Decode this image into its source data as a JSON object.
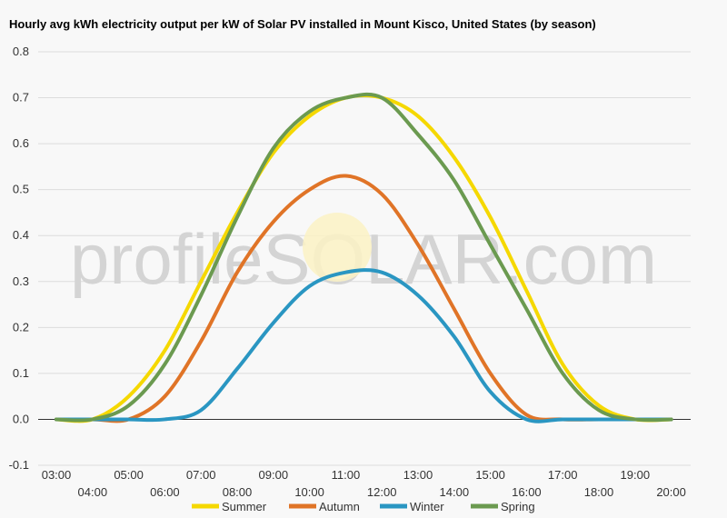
{
  "chart_data": {
    "type": "line",
    "title": "Hourly avg kWh electricity output per kW of Solar PV installed in Mount Kisco, United States (by season)",
    "watermark": "profileSOLAR.com",
    "ylim": [
      -0.1,
      0.8
    ],
    "yticks": [
      "-0.1",
      "0.0",
      "0.1",
      "0.2",
      "0.3",
      "0.4",
      "0.5",
      "0.6",
      "0.7",
      "0.8"
    ],
    "x_labels": [
      "03:00",
      "04:00",
      "05:00",
      "06:00",
      "07:00",
      "08:00",
      "09:00",
      "10:00",
      "11:00",
      "12:00",
      "13:00",
      "14:00",
      "15:00",
      "16:00",
      "17:00",
      "18:00",
      "19:00",
      "20:00"
    ],
    "grid": true,
    "legend_position": "bottom",
    "series": [
      {
        "name": "Summer",
        "color": "#f5d800",
        "values": [
          0.0,
          0.0,
          0.05,
          0.15,
          0.3,
          0.45,
          0.58,
          0.66,
          0.7,
          0.7,
          0.66,
          0.57,
          0.44,
          0.28,
          0.12,
          0.03,
          0.0,
          0.0
        ]
      },
      {
        "name": "Autumn",
        "color": "#e07427",
        "values": [
          0.0,
          0.0,
          0.0,
          0.05,
          0.17,
          0.32,
          0.43,
          0.5,
          0.53,
          0.49,
          0.38,
          0.24,
          0.1,
          0.01,
          0.0,
          0.0,
          0.0,
          0.0
        ]
      },
      {
        "name": "Winter",
        "color": "#2a96c2",
        "values": [
          0.0,
          0.0,
          0.0,
          0.0,
          0.02,
          0.11,
          0.21,
          0.29,
          0.32,
          0.32,
          0.27,
          0.18,
          0.06,
          0.0,
          0.0,
          0.0,
          0.0,
          0.0
        ]
      },
      {
        "name": "Spring",
        "color": "#6b9a50",
        "values": [
          0.0,
          0.0,
          0.03,
          0.12,
          0.27,
          0.44,
          0.59,
          0.67,
          0.7,
          0.7,
          0.62,
          0.52,
          0.38,
          0.24,
          0.1,
          0.02,
          0.0,
          0.0
        ]
      }
    ]
  }
}
